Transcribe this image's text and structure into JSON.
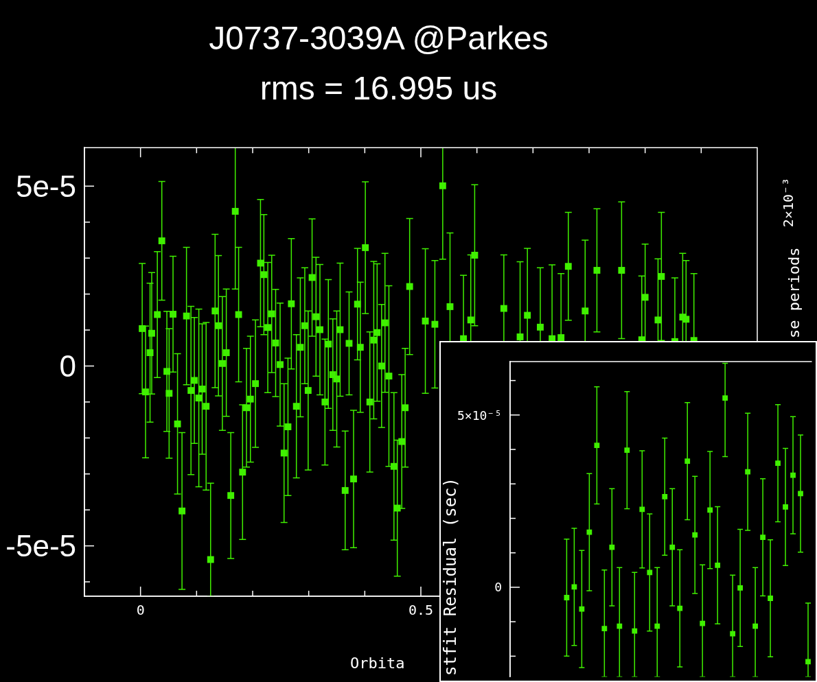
{
  "chart_data": [
    {
      "type": "scatter",
      "title": "J0737-3039A @Parkes",
      "subtitle": "rms = 16.995 us",
      "xlabel": "Orbita",
      "y2label": "se periods",
      "color": "#40f000",
      "marker": "square",
      "x": [
        0.003,
        0.009,
        0.017,
        0.02,
        0.03,
        0.038,
        0.047,
        0.051,
        0.058,
        0.066,
        0.074,
        0.082,
        0.09,
        0.096,
        0.104,
        0.11,
        0.117,
        0.125,
        0.133,
        0.139,
        0.146,
        0.153,
        0.161,
        0.169,
        0.175,
        0.182,
        0.189,
        0.196,
        0.205,
        0.214,
        0.22,
        0.227,
        0.234,
        0.241,
        0.249,
        0.256,
        0.263,
        0.269,
        0.278,
        0.285,
        0.293,
        0.299,
        0.306,
        0.313,
        0.32,
        0.329,
        0.335,
        0.343,
        0.35,
        0.356,
        0.365,
        0.372,
        0.38,
        0.387,
        0.392,
        0.401,
        0.409,
        0.416,
        0.422,
        0.43,
        0.436,
        0.443,
        0.452,
        0.458,
        0.466,
        0.472,
        0.48,
        0.508,
        0.525,
        0.539,
        0.552,
        0.576,
        0.589,
        0.596,
        0.648,
        0.677,
        0.69,
        0.713,
        0.734,
        0.75,
        0.763,
        0.793,
        0.814,
        0.858,
        0.894,
        0.9,
        0.923,
        0.929,
        0.953,
        0.967,
        0.973,
        0.987
      ],
      "values": [
        1.04e-05,
        -7.2e-06,
        3.7e-06,
        9.1e-06,
        1.43e-05,
        3.48e-05,
        -1.5e-06,
        -7.6e-06,
        1.44e-05,
        -1.61e-05,
        -4.03e-05,
        1.39e-05,
        -6.8e-06,
        -4e-06,
        -8.9e-06,
        -6.4e-06,
        -1.12e-05,
        -5.38e-05,
        1.53e-05,
        1.12e-05,
        7e-07,
        3.7e-06,
        -3.6e-05,
        4.3e-05,
        1.43e-05,
        -2.95e-05,
        -1.16e-05,
        -9.2e-06,
        -4.9e-06,
        2.86e-05,
        2.54e-05,
        1.07e-05,
        1.45e-05,
        6.4e-06,
        4e-07,
        -2.42e-05,
        -1.69e-05,
        1.73e-05,
        -1.12e-05,
        5.2e-06,
        1.12e-05,
        -6.8e-06,
        2.46e-05,
        1.37e-05,
        1.01e-05,
        -1e-05,
        6.1e-06,
        -2.4e-06,
        -3.6e-06,
        1.01e-05,
        -3.46e-05,
        6.3e-06,
        -3.14e-05,
        1.72e-05,
        5.2e-06,
        3.29e-05,
        -1e-05,
        7.2e-06,
        9.3e-06,
        0,
        1.2e-05,
        -2.8e-06,
        -2.79e-05,
        -3.95e-05,
        -2.1e-05,
        -1.16e-05,
        2.21e-05,
        1.25e-05,
        1.16e-05,
        5.01e-05,
        1.65e-05,
        7.6e-06,
        1.28e-05,
        3.08e-05,
        1.6e-05,
        8.1e-06,
        1.41e-05,
        1.08e-05,
        7.6e-06,
        7.9e-06,
        2.77e-05,
        1.53e-05,
        2.66e-05,
        2.66e-05,
        7.3e-06,
        1.91e-05,
        1.28e-05,
        2.49e-05,
        6.8e-06,
        1.36e-05,
        1.3e-05,
        7.1e-06
      ],
      "errors": [
        1.81e-05,
        1.83e-05,
        1.93e-05,
        1.69e-05,
        1.75e-05,
        1.65e-05,
        1.67e-05,
        1.8e-05,
        1.61e-05,
        1.95e-05,
        2.18e-05,
        1.91e-05,
        2.34e-05,
        1.75e-05,
        2.47e-05,
        1.81e-05,
        2.33e-05,
        [
          -6.4e-05,
          -3.26e-05
        ],
        2.13e-05,
        1.95e-05,
        1.86e-05,
        1.77e-05,
        1.75e-05,
        [
          2.14e-05,
          6.07e-05
        ],
        1.87e-05,
        1.87e-05,
        1.65e-05,
        1.75e-05,
        1.77e-05,
        1.77e-05,
        1.67e-05,
        1.81e-05,
        1.63e-05,
        1.49e-05,
        1.71e-05,
        1.93e-05,
        1.91e-05,
        1.81e-05,
        1.99e-05,
        1.93e-05,
        1.61e-05,
        2.21e-05,
        1.63e-05,
        1.65e-05,
        1.81e-05,
        1.75e-05,
        1.79e-05,
        1.55e-05,
        1.89e-05,
        1.85e-05,
        1.65e-05,
        1.43e-05,
        1.91e-05,
        1.55e-05,
        1.81e-05,
        1.83e-05,
        1.95e-05,
        2.19e-05,
        1.91e-05,
        1.71e-05,
        1.93e-05,
        2.51e-05,
        2.05e-05,
        1.89e-05,
        1.86e-05,
        1.65e-05,
        1.89e-05,
        2.01e-05,
        1.77e-05,
        [
          2.97e-05,
          6.07e-05
        ],
        2.05e-05,
        1.76e-05,
        1.81e-05,
        1.96e-05,
        1.49e-05,
        2.09e-05,
        1.86e-05,
        1.65e-05,
        2.05e-05,
        1.78e-05,
        1.5e-05,
        1.97e-05,
        1.71e-05,
        1.9e-05,
        1.77e-05,
        1.48e-05,
        1.7e-05,
        1.78e-05,
        1.77e-05,
        1.77e-05,
        1.63e-05,
        1.86e-05
      ],
      "xlim": [
        -0.1,
        1.1
      ],
      "annotations": [
        "2×10⁻³"
      ],
      "xticks": [
        {
          "value": 0,
          "label": "0"
        },
        {
          "value": 0.1,
          "label": null
        },
        {
          "value": 0.2,
          "label": null
        },
        {
          "value": 0.3,
          "label": null
        },
        {
          "value": 0.4,
          "label": null
        },
        {
          "value": 0.5,
          "label": "0.5"
        },
        {
          "value": 0.6,
          "label": null
        },
        {
          "value": 0.7,
          "label": null
        },
        {
          "value": 0.8,
          "label": null
        },
        {
          "value": 0.9,
          "label": null
        },
        {
          "value": 1,
          "label": null
        }
      ],
      "ylim": [
        -6.4e-05,
        6.07e-05
      ],
      "yticks": [
        {
          "value": -6e-05,
          "label": null
        },
        {
          "value": -5e-05,
          "label": "-5e-5"
        },
        {
          "value": -4e-05,
          "label": null
        },
        {
          "value": -3e-05,
          "label": null
        },
        {
          "value": -2e-05,
          "label": null
        },
        {
          "value": -1e-05,
          "label": null
        },
        {
          "value": 0,
          "label": "0"
        },
        {
          "value": 1e-05,
          "label": null
        },
        {
          "value": 2e-05,
          "label": null
        },
        {
          "value": 3e-05,
          "label": null
        },
        {
          "value": 4e-05,
          "label": null
        },
        {
          "value": 5e-05,
          "label": "5e-5"
        }
      ]
    },
    {
      "type": "scatter",
      "ylabel": "stfit Residual (sec)",
      "color": "#40f000",
      "marker": "square",
      "tick_labels": "y",
      "categories": [
        null,
        null,
        null,
        null,
        null,
        null,
        null,
        null,
        null,
        null,
        null,
        null,
        null,
        null,
        null,
        null,
        null,
        null,
        null,
        null,
        null,
        null,
        null,
        null,
        null,
        null,
        null,
        null,
        null,
        null,
        null,
        null,
        null,
        null,
        null,
        null,
        null,
        null,
        null,
        null
      ],
      "values": [
        null,
        null,
        null,
        null,
        null,
        null,
        null,
        -3e-06,
        1e-07,
        -6.3e-06,
        1.6e-05,
        4.12e-05,
        -1.2e-05,
        1.16e-05,
        -1.13e-05,
        3.98e-05,
        -1.27e-05,
        2.26e-05,
        4.3e-06,
        -1.13e-05,
        2.63e-05,
        1.16e-05,
        -6.1e-06,
        3.66e-05,
        1.52e-05,
        -1.05e-05,
        2.24e-05,
        6.4e-06,
        5.49e-05,
        -1.35e-05,
        -2e-07,
        3.35e-05,
        -1.13e-05,
        1.45e-05,
        -3.2e-06,
        3.6e-05,
        2.33e-05,
        3.25e-05,
        2.72e-05,
        -2.16e-05
      ],
      "errors": [
        null,
        null,
        null,
        null,
        null,
        null,
        null,
        [
          -2e-05,
          1.4e-05
        ],
        [
          -1.69e-05,
          1.71e-05
        ],
        [
          -2.33e-05,
          1.07e-05
        ],
        [
          -1e-06,
          3.3e-05
        ],
        [
          2.42e-05,
          5.82e-05
        ],
        [
          -2.6e-05,
          5e-06
        ],
        [
          -5.4e-06,
          2.86e-05
        ],
        [
          -2.6e-05,
          5.7e-06
        ],
        [
          2.28e-05,
          5.68e-05
        ],
        [
          -2.6e-05,
          4.3e-06
        ],
        [
          5.6e-06,
          3.96e-05
        ],
        [
          -1.27e-05,
          2.13e-05
        ],
        [
          -2.6e-05,
          5.7e-06
        ],
        [
          9.3e-06,
          4.33e-05
        ],
        [
          -5.4e-06,
          2.86e-05
        ],
        [
          -2.31e-05,
          1.09e-05
        ],
        [
          1.96e-05,
          5.36e-05
        ],
        [
          -1.8e-06,
          3.22e-05
        ],
        [
          -2.6e-05,
          6.5e-06
        ],
        [
          5.4e-06,
          3.94e-05
        ],
        [
          -1.06e-05,
          2.34e-05
        ],
        [
          3.79e-05,
          6.5e-05
        ],
        [
          -2.6e-05,
          3.5e-06
        ],
        [
          -1.72e-05,
          1.68e-05
        ],
        [
          1.65e-05,
          5.05e-05
        ],
        [
          -2.6e-05,
          5.7e-06
        ],
        [
          -2.5e-06,
          3.15e-05
        ],
        [
          -2.02e-05,
          1.38e-05
        ],
        [
          1.9e-05,
          5.3e-05
        ],
        [
          6.3e-06,
          4.03e-05
        ],
        [
          1.55e-05,
          4.95e-05
        ],
        [
          1.02e-05,
          4.42e-05
        ],
        [
          -2.6e-05,
          -4.6e-06
        ]
      ],
      "ylim": [
        -2.6e-05,
        6.55e-05
      ],
      "yticks": [
        {
          "value": -2e-05,
          "label": null
        },
        {
          "value": -1e-05,
          "label": null
        },
        0,
        {
          "value": 1e-05,
          "label": null
        },
        {
          "value": 2e-05,
          "label": null
        },
        {
          "value": 3e-05,
          "label": null
        },
        {
          "value": 4e-05,
          "label": null
        },
        {
          "value": 5e-05,
          "label": "5×10⁻⁵"
        },
        {
          "value": 6e-05,
          "label": null
        }
      ]
    }
  ]
}
